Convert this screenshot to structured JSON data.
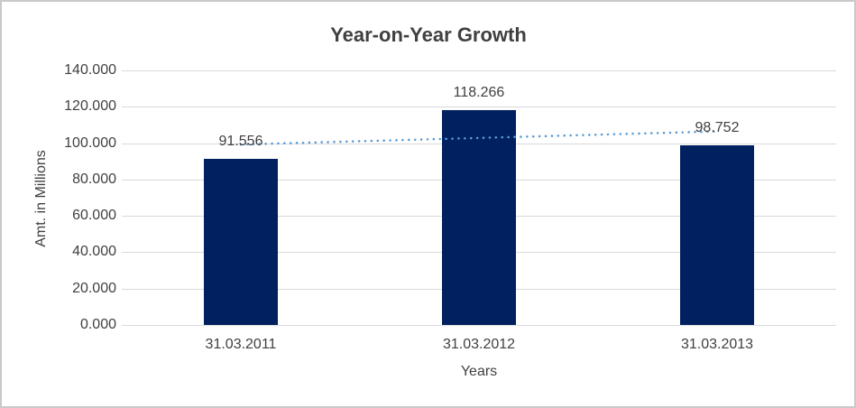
{
  "chart_data": {
    "type": "bar",
    "title": "Year-on-Year Growth",
    "xlabel": "Years",
    "ylabel": "Amt. in Millions",
    "categories": [
      "31.03.2011",
      "31.03.2012",
      "31.03.2013"
    ],
    "values": [
      91.556,
      118.266,
      98.752
    ],
    "data_labels": [
      "91.556",
      "118.266",
      "98.752"
    ],
    "yticks": [
      {
        "value": 0,
        "label": "0.000"
      },
      {
        "value": 20,
        "label": "20.000"
      },
      {
        "value": 40,
        "label": "40.000"
      },
      {
        "value": 60,
        "label": "60.000"
      },
      {
        "value": 80,
        "label": "80.000"
      },
      {
        "value": 100,
        "label": "100.000"
      },
      {
        "value": 120,
        "label": "120.000"
      },
      {
        "value": 140,
        "label": "140.000"
      }
    ],
    "ylim": [
      0,
      140
    ],
    "grid": true,
    "legend": false,
    "trendline": {
      "type": "linear",
      "style": "dotted"
    }
  },
  "colors": {
    "bar": "#002060",
    "trendline": "#5B9BD5",
    "gridline": "#D9D9D9",
    "text": "#404040",
    "frame_border": "#C9C9C9",
    "background": "#FFFFFF"
  }
}
